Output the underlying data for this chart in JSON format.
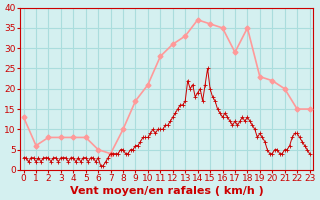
{
  "xlabel": "Vent moyen/en rafales ( km/h )",
  "bg_color": "#d4f0f0",
  "grid_color": "#aadddd",
  "xlim": [
    0,
    23
  ],
  "ylim": [
    0,
    40
  ],
  "yticks": [
    0,
    5,
    10,
    15,
    20,
    25,
    30,
    35,
    40
  ],
  "xticks": [
    0,
    1,
    2,
    3,
    4,
    5,
    6,
    7,
    8,
    9,
    10,
    11,
    12,
    13,
    14,
    15,
    16,
    17,
    18,
    19,
    20,
    21,
    22,
    23
  ],
  "rafales_x": [
    0,
    1,
    2,
    3,
    4,
    5,
    6,
    7,
    8,
    9,
    10,
    11,
    12,
    13,
    14,
    15,
    16,
    17,
    18,
    19,
    20,
    21,
    22,
    23
  ],
  "rafales_y": [
    13,
    6,
    8,
    8,
    8,
    8,
    5,
    4,
    10,
    17,
    21,
    28,
    31,
    33,
    37,
    36,
    35,
    29,
    35,
    23,
    22,
    20,
    15,
    15
  ],
  "moyen_x": [
    0.0,
    0.2,
    0.4,
    0.6,
    0.8,
    1.0,
    1.2,
    1.4,
    1.6,
    1.8,
    2.0,
    2.2,
    2.4,
    2.6,
    2.8,
    3.0,
    3.2,
    3.4,
    3.6,
    3.8,
    4.0,
    4.2,
    4.4,
    4.6,
    4.8,
    5.0,
    5.2,
    5.4,
    5.6,
    5.8,
    6.0,
    6.2,
    6.4,
    6.6,
    6.8,
    7.0,
    7.2,
    7.4,
    7.6,
    7.8,
    8.0,
    8.2,
    8.4,
    8.6,
    8.8,
    9.0,
    9.2,
    9.4,
    9.6,
    9.8,
    10.0,
    10.2,
    10.4,
    10.6,
    10.8,
    11.0,
    11.2,
    11.4,
    11.6,
    11.8,
    12.0,
    12.2,
    12.4,
    12.6,
    12.8,
    13.0,
    13.2,
    13.4,
    13.6,
    13.8,
    14.0,
    14.2,
    14.4,
    14.6,
    14.8,
    15.0,
    15.2,
    15.4,
    15.6,
    15.8,
    16.0,
    16.2,
    16.4,
    16.6,
    16.8,
    17.0,
    17.2,
    17.4,
    17.6,
    17.8,
    18.0,
    18.2,
    18.4,
    18.6,
    18.8,
    19.0,
    19.2,
    19.4,
    19.6,
    19.8,
    20.0,
    20.2,
    20.4,
    20.6,
    20.8,
    21.0,
    21.2,
    21.4,
    21.6,
    21.8,
    22.0,
    22.2,
    22.4,
    22.6,
    22.8,
    23.0
  ],
  "moyen_y": [
    3,
    3,
    2,
    3,
    3,
    2,
    3,
    2,
    3,
    3,
    3,
    2,
    3,
    3,
    2,
    3,
    3,
    3,
    2,
    3,
    3,
    2,
    3,
    2,
    3,
    3,
    2,
    3,
    3,
    2,
    3,
    1,
    1,
    2,
    3,
    4,
    4,
    4,
    4,
    5,
    5,
    4,
    4,
    5,
    5,
    6,
    6,
    7,
    8,
    8,
    8,
    9,
    10,
    9,
    10,
    10,
    10,
    11,
    11,
    12,
    13,
    14,
    15,
    16,
    16,
    17,
    22,
    20,
    21,
    18,
    19,
    20,
    17,
    21,
    25,
    20,
    18,
    17,
    15,
    14,
    13,
    14,
    13,
    12,
    11,
    12,
    11,
    12,
    13,
    12,
    13,
    12,
    11,
    10,
    8,
    9,
    8,
    7,
    5,
    4,
    4,
    5,
    5,
    4,
    4,
    5,
    5,
    6,
    8,
    9,
    9,
    8,
    7,
    6,
    5,
    4
  ],
  "rafales_color": "#ff9999",
  "moyen_color": "#cc0000",
  "xlabel_color": "#cc0000",
  "tick_color": "#cc0000",
  "xlabel_fontsize": 8,
  "tick_fontsize": 6.5
}
